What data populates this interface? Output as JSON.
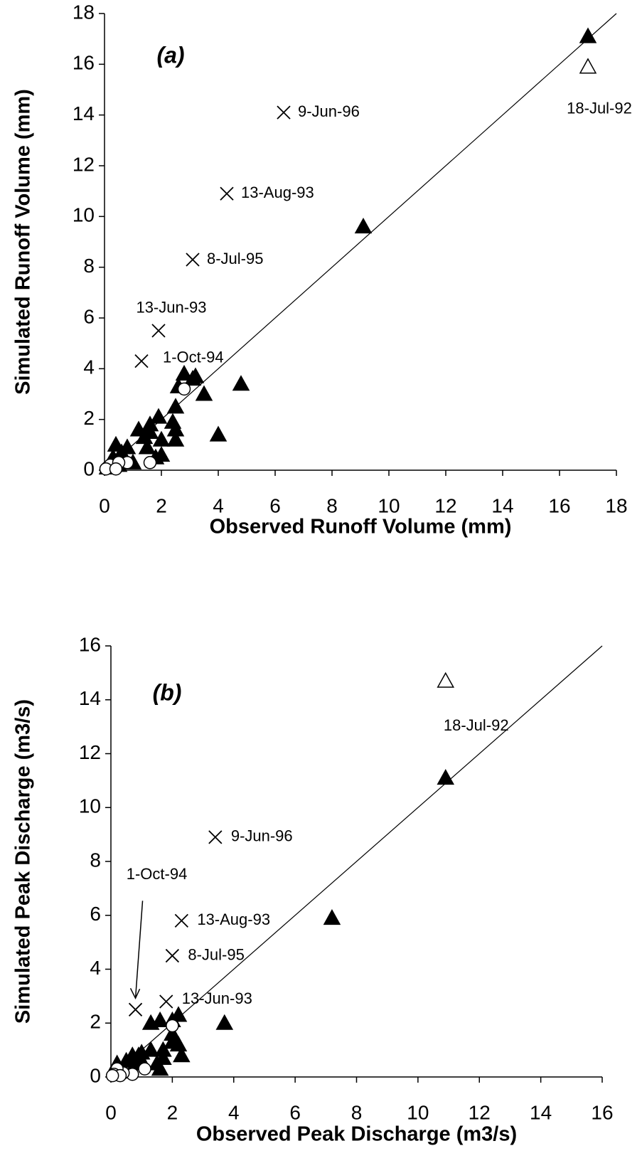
{
  "chart_data": [
    {
      "type": "scatter",
      "panel_label": "(a)",
      "x_label": "Observed Runoff Volume (mm)",
      "y_label": "Simulated Runoff Volume (mm)",
      "xlim": [
        0,
        18
      ],
      "ylim": [
        0,
        18
      ],
      "xticks": [
        0,
        2,
        4,
        6,
        8,
        10,
        12,
        14,
        16,
        18
      ],
      "yticks": [
        0,
        2,
        4,
        6,
        8,
        10,
        12,
        14,
        16,
        18
      ],
      "grid": false,
      "identity_line": true,
      "series": [
        {
          "marker": "triangle",
          "color": "#000000",
          "x": [
            17,
            9.1,
            2.8,
            3.1,
            3.2,
            2.6,
            3.5,
            4.8,
            4.0,
            2.5,
            2.4,
            2.5,
            2.5,
            1.9,
            1.6,
            1.2,
            1.4,
            1.6,
            2.0,
            1.8,
            2.0,
            1.5,
            0.8,
            0.4,
            0.6,
            0.3,
            0.2,
            1.0,
            0.1,
            0.5
          ],
          "values": [
            17.1,
            9.6,
            3.8,
            3.6,
            3.7,
            3.3,
            3.0,
            3.4,
            1.4,
            2.5,
            1.9,
            1.6,
            1.2,
            2.1,
            1.8,
            1.6,
            1.3,
            1.5,
            1.2,
            0.5,
            0.6,
            0.9,
            0.9,
            1.0,
            0.7,
            0.5,
            0.3,
            0.3,
            0.1,
            0.2
          ]
        },
        {
          "marker": "triangle-open",
          "color": "#000000",
          "x": [
            17
          ],
          "values": [
            15.9
          ],
          "labels": [
            "18-Jul-92"
          ]
        },
        {
          "marker": "cross",
          "color": "#000000",
          "x": [
            6.3,
            4.3,
            3.1,
            1.9,
            1.3
          ],
          "values": [
            14.1,
            10.9,
            8.3,
            5.5,
            4.3
          ],
          "labels": [
            "9-Jun-96",
            "13-Aug-93",
            "8-Jul-95",
            "13-Jun-93",
            "1-Oct-94"
          ]
        },
        {
          "marker": "circle-open",
          "color": "#000000",
          "x": [
            2.8,
            1.6,
            0.8,
            0.3,
            0.1,
            0.2,
            0.5,
            0.05,
            0.4
          ],
          "values": [
            3.2,
            0.3,
            0.3,
            0.1,
            0.1,
            0.2,
            0.3,
            0.05,
            0.05
          ]
        }
      ]
    },
    {
      "type": "scatter",
      "panel_label": "(b)",
      "x_label": "Observed Peak Discharge (m3/s)",
      "y_label": "Simulated Peak Discharge  (m3/s)",
      "xlim": [
        0,
        16
      ],
      "ylim": [
        0,
        16
      ],
      "xticks": [
        0,
        2,
        4,
        6,
        8,
        10,
        12,
        14,
        16
      ],
      "yticks": [
        0,
        2,
        4,
        6,
        8,
        10,
        12,
        14,
        16
      ],
      "grid": false,
      "identity_line": true,
      "series": [
        {
          "marker": "triangle",
          "color": "#000000",
          "x": [
            10.9,
            7.2,
            3.7,
            2.2,
            2.0,
            1.6,
            1.3,
            2.0,
            2.2,
            2.3,
            2.0,
            1.7,
            1.6,
            1.7,
            1.3,
            1.0,
            0.9,
            0.7,
            0.5,
            0.2,
            1.0,
            0.8,
            1.5,
            0.4
          ],
          "values": [
            11.1,
            5.9,
            2.0,
            2.3,
            2.1,
            2.1,
            2.0,
            1.6,
            1.2,
            0.8,
            1.3,
            0.7,
            0.3,
            1.0,
            1.0,
            0.9,
            0.8,
            0.8,
            0.6,
            0.5,
            0.6,
            0.5,
            0.5,
            0.3
          ]
        },
        {
          "marker": "triangle-open",
          "color": "#000000",
          "x": [
            10.9
          ],
          "values": [
            14.7
          ],
          "labels": [
            "18-Jul-92"
          ]
        },
        {
          "marker": "cross",
          "color": "#000000",
          "x": [
            3.4,
            2.3,
            2.0,
            1.8,
            0.8
          ],
          "values": [
            8.9,
            5.8,
            4.5,
            2.8,
            2.5
          ],
          "labels": [
            "9-Jun-96",
            "13-Aug-93",
            "8-Jul-95",
            "13-Jun-93",
            "1-Oct-94"
          ]
        },
        {
          "marker": "circle-open",
          "color": "#000000",
          "x": [
            2.0,
            1.1,
            0.7,
            0.4,
            0.2,
            0.1,
            0.3,
            0.05
          ],
          "values": [
            1.9,
            0.3,
            0.1,
            0.15,
            0.3,
            0.1,
            0.05,
            0.05
          ]
        }
      ]
    }
  ]
}
